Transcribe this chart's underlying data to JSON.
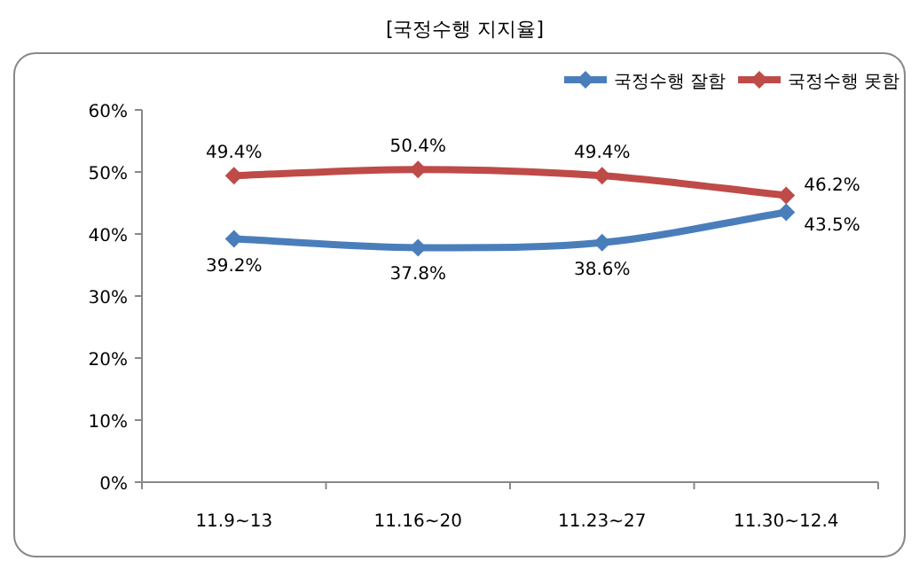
{
  "chart_data": {
    "type": "line",
    "title": "[국정수행 지지율]",
    "categories": [
      "11.9~13",
      "11.16~20",
      "11.23~27",
      "11.30~12.4"
    ],
    "series": [
      {
        "name": "국정수행 잘함",
        "color": "#4a7ebb",
        "values": [
          39.2,
          37.8,
          38.6,
          43.5
        ],
        "value_labels": [
          "39.2%",
          "37.8%",
          "38.6%",
          "43.5%"
        ]
      },
      {
        "name": "국정수행 못함",
        "color": "#be4b48",
        "values": [
          49.4,
          50.4,
          49.4,
          46.2
        ],
        "value_labels": [
          "49.4%",
          "50.4%",
          "49.4%",
          "46.2%"
        ]
      }
    ],
    "ylim": [
      0,
      60
    ],
    "yticks": [
      {
        "value": 0,
        "label": "0%"
      },
      {
        "value": 10,
        "label": "10%"
      },
      {
        "value": 20,
        "label": "20%"
      },
      {
        "value": 30,
        "label": "30%"
      },
      {
        "value": 40,
        "label": "40%"
      },
      {
        "value": 50,
        "label": "50%"
      },
      {
        "value": 60,
        "label": "60%"
      }
    ],
    "grid": false,
    "legend": "top right",
    "marker": "diamond",
    "line_style": "solid"
  }
}
